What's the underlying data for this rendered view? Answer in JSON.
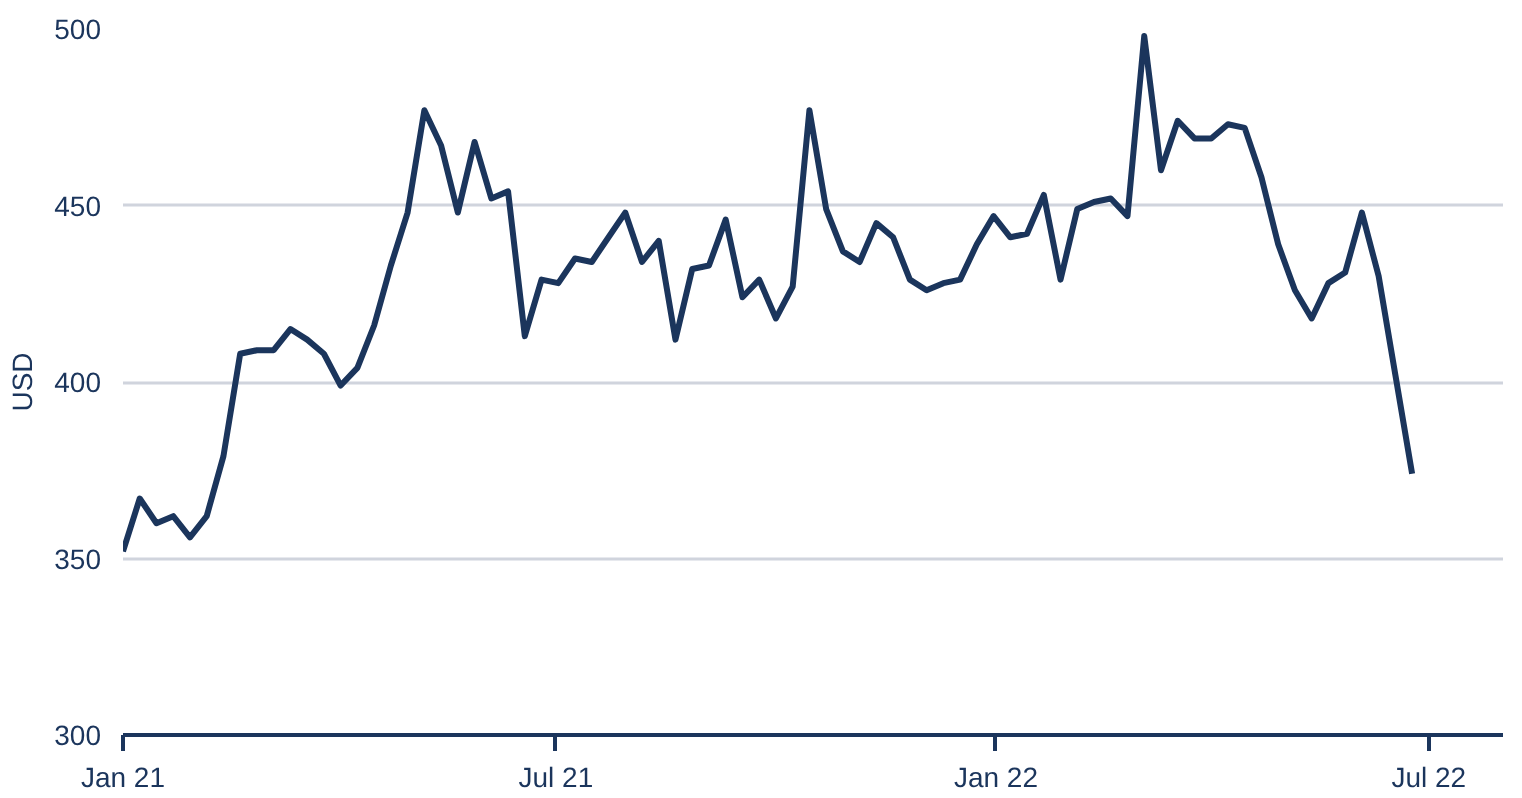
{
  "chart_data": {
    "type": "line",
    "ylabel": "USD",
    "x": [
      "2021-01-01",
      "2021-01-08",
      "2021-01-15",
      "2021-01-22",
      "2021-01-29",
      "2021-02-05",
      "2021-02-12",
      "2021-02-19",
      "2021-02-26",
      "2021-03-05",
      "2021-03-12",
      "2021-03-19",
      "2021-03-26",
      "2021-04-02",
      "2021-04-09",
      "2021-04-16",
      "2021-04-23",
      "2021-04-30",
      "2021-05-07",
      "2021-05-14",
      "2021-05-21",
      "2021-05-28",
      "2021-06-04",
      "2021-06-11",
      "2021-06-18",
      "2021-06-25",
      "2021-07-02",
      "2021-07-09",
      "2021-07-16",
      "2021-07-23",
      "2021-07-30",
      "2021-08-06",
      "2021-08-13",
      "2021-08-20",
      "2021-08-27",
      "2021-09-03",
      "2021-09-10",
      "2021-09-17",
      "2021-09-24",
      "2021-10-01",
      "2021-10-08",
      "2021-10-15",
      "2021-10-22",
      "2021-10-29",
      "2021-11-05",
      "2021-11-12",
      "2021-11-19",
      "2021-11-26",
      "2021-12-03",
      "2021-12-10",
      "2021-12-17",
      "2021-12-24",
      "2021-12-31",
      "2022-01-07",
      "2022-01-14",
      "2022-01-21",
      "2022-01-28",
      "2022-02-04",
      "2022-02-11",
      "2022-02-18",
      "2022-02-25",
      "2022-03-04",
      "2022-03-11",
      "2022-03-18",
      "2022-03-25",
      "2022-04-01",
      "2022-04-08",
      "2022-04-15",
      "2022-04-22",
      "2022-04-29",
      "2022-05-06",
      "2022-05-13",
      "2022-05-20",
      "2022-05-27",
      "2022-06-03",
      "2022-06-10",
      "2022-06-17",
      "2022-06-24"
    ],
    "series": [
      {
        "color": "#1b355c",
        "values": [
          352,
          367,
          360,
          362,
          356,
          362,
          379,
          408,
          409,
          409,
          415,
          412,
          408,
          399,
          404,
          416,
          433,
          448,
          477,
          467,
          448,
          468,
          452,
          454,
          413,
          429,
          428,
          435,
          434,
          441,
          448,
          434,
          440,
          412,
          432,
          433,
          446,
          424,
          429,
          418,
          427,
          477,
          449,
          437,
          434,
          445,
          441,
          429,
          426,
          428,
          429,
          439,
          447,
          441,
          442,
          453,
          429,
          449,
          451,
          452,
          447,
          498,
          460,
          474,
          469,
          469,
          473,
          472,
          458,
          439,
          426,
          418,
          428,
          431,
          448,
          430,
          402,
          374
        ]
      }
    ],
    "xlim": [
      "2021-01-01",
      "2022-08-01"
    ],
    "xticks": [
      {
        "value": "2021-01-01",
        "label": "Jan 21"
      },
      {
        "value": "2021-07-01",
        "label": "Jul 21"
      },
      {
        "value": "2022-01-01",
        "label": "Jan 22"
      },
      {
        "value": "2022-07-01",
        "label": "Jul 22"
      }
    ],
    "ylim": [
      300,
      500
    ],
    "yticks": [
      300,
      350,
      400,
      450,
      500
    ],
    "grid": "y",
    "marker": "none",
    "line_style": "solid"
  }
}
